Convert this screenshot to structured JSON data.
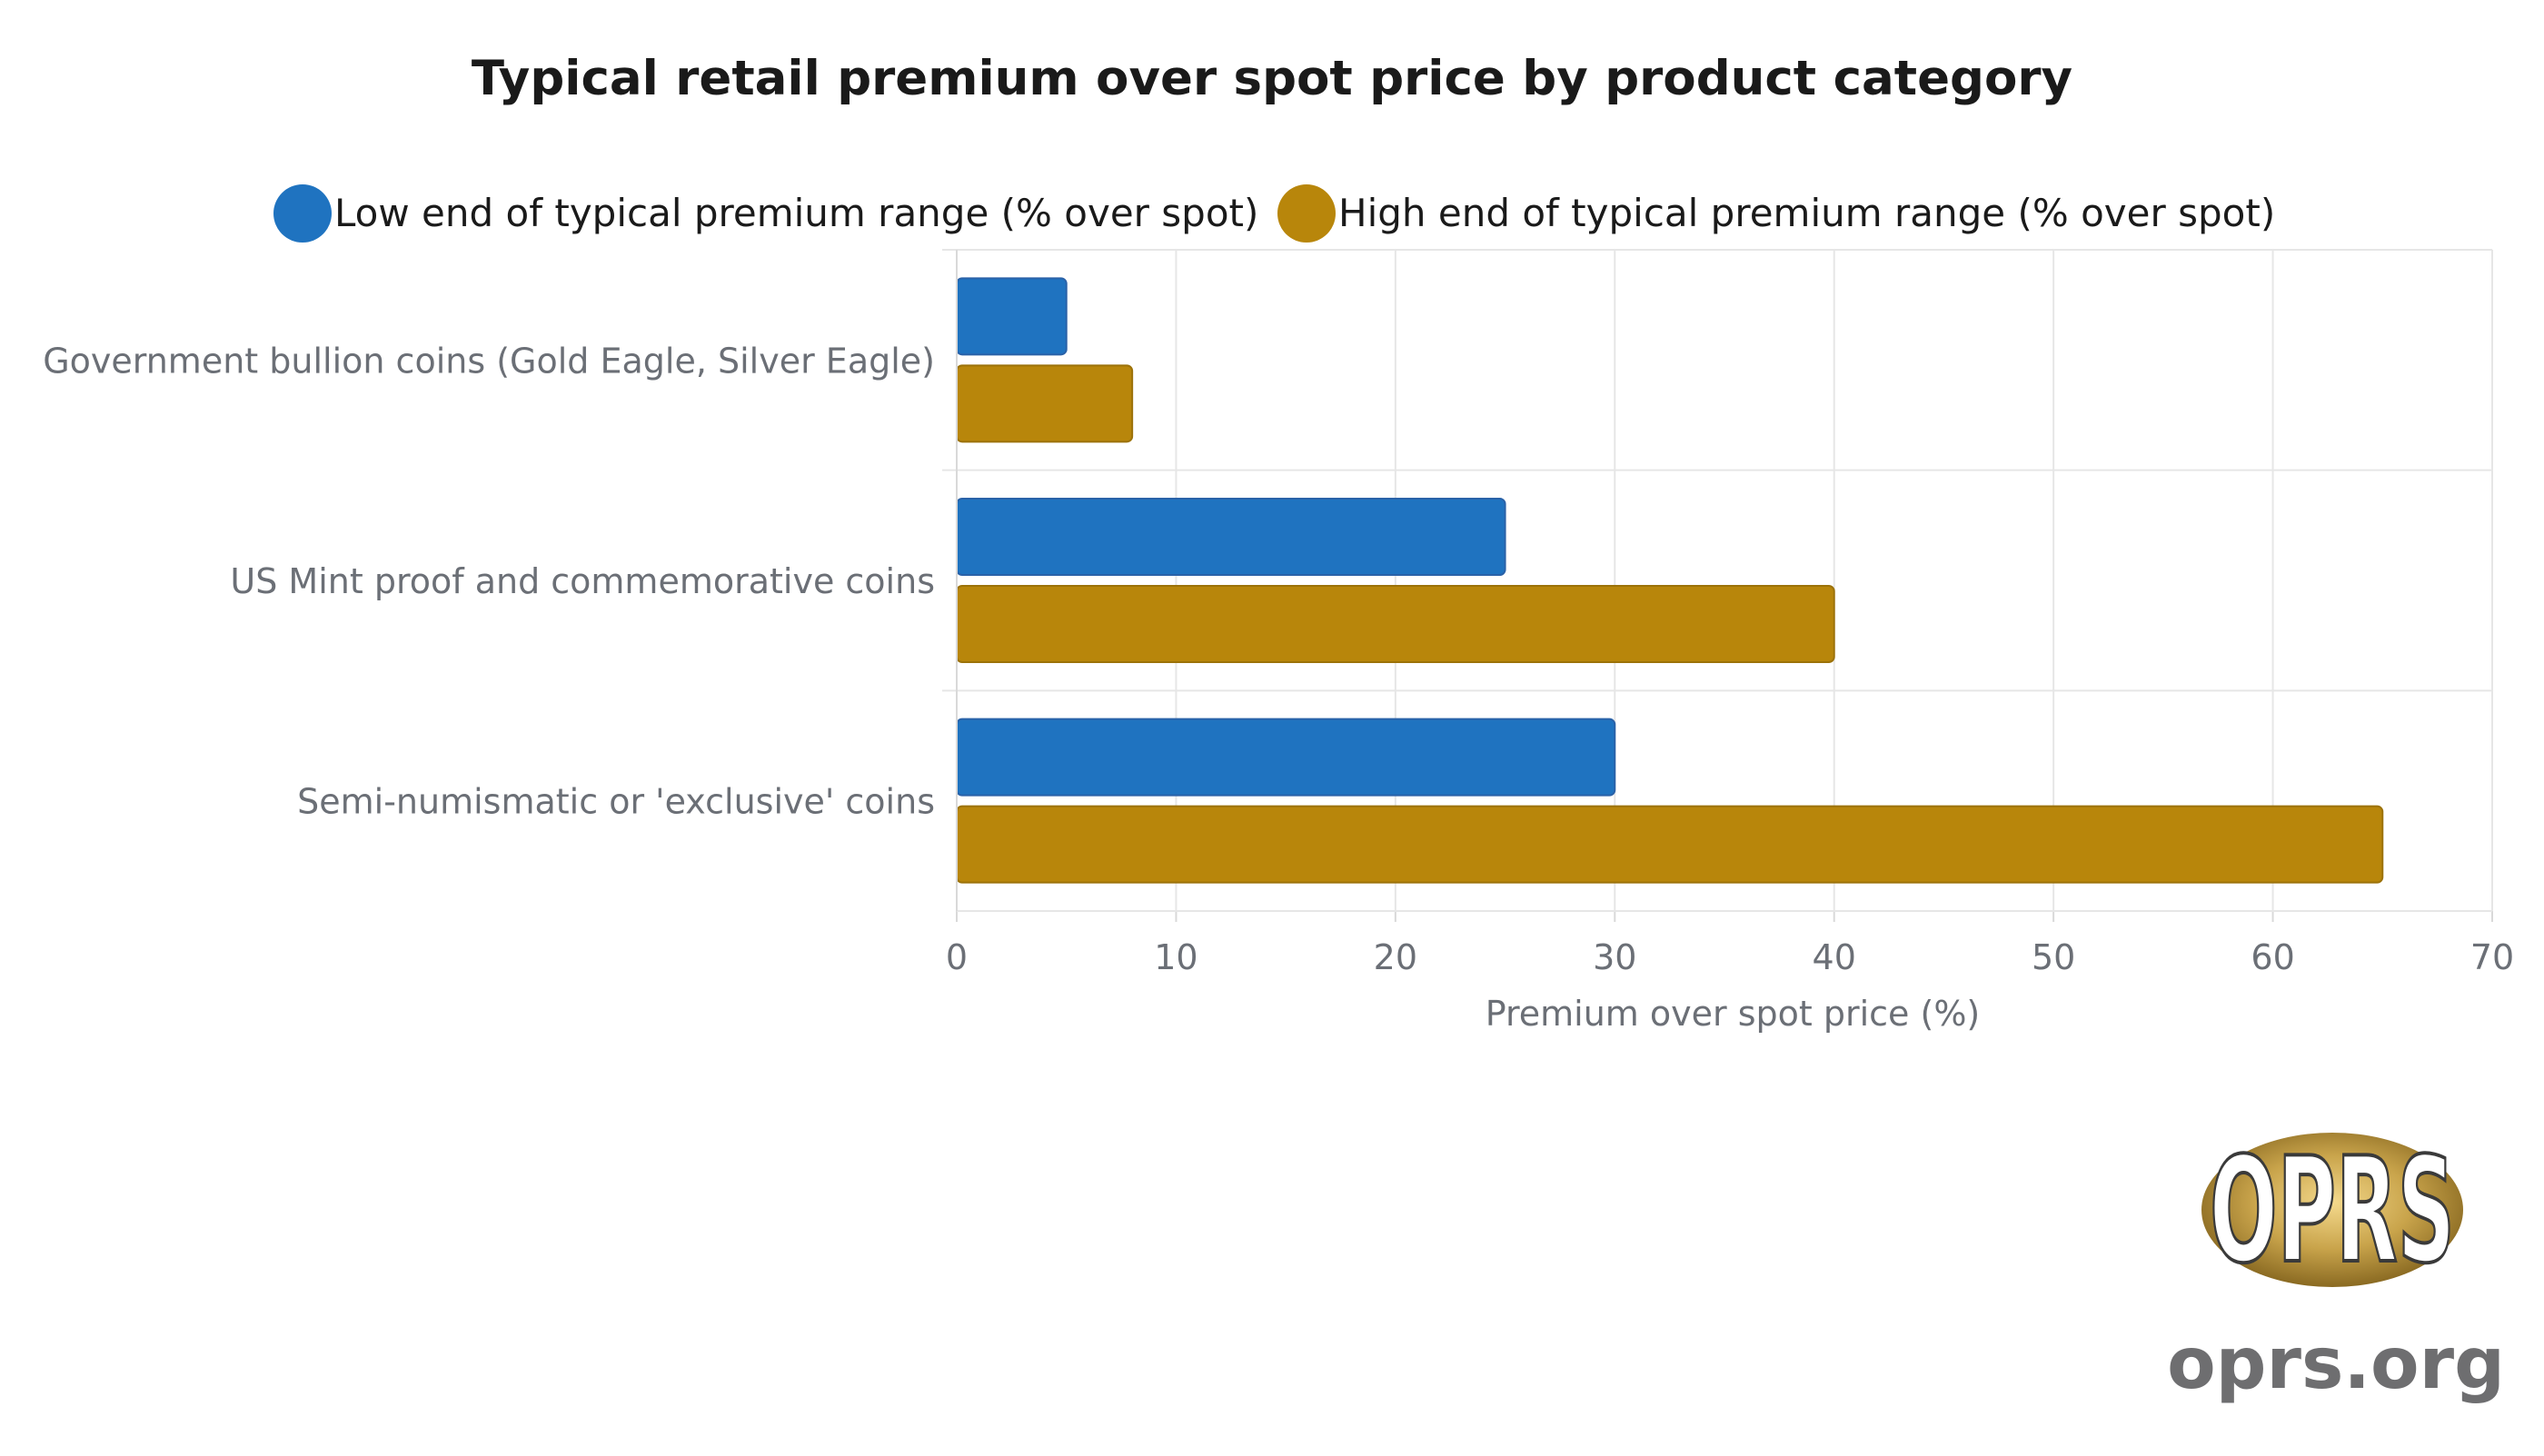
{
  "chart_data": {
    "type": "bar",
    "orientation": "horizontal",
    "title": "Typical retail premium over spot price by product category",
    "categories": [
      "Government bullion coins (Gold Eagle, Silver Eagle)",
      "US Mint proof and commemorative coins",
      "Semi-numismatic or 'exclusive' coins"
    ],
    "series": [
      {
        "name": "Low end of typical premium range (% over spot)",
        "values": [
          5,
          25,
          30
        ],
        "color": "#1f73c0"
      },
      {
        "name": "High end of typical premium range (% over spot)",
        "values": [
          8,
          40,
          65
        ],
        "color": "#b8860b"
      }
    ],
    "xlabel": "Premium over spot price (%)",
    "ylabel": "",
    "xlim": [
      0,
      70
    ],
    "xticks": [
      0,
      10,
      20,
      30,
      40,
      50,
      60,
      70
    ],
    "grid": true,
    "legend_position": "top"
  },
  "brand": {
    "logo_text": "OPRS",
    "site": "oprs.org"
  }
}
